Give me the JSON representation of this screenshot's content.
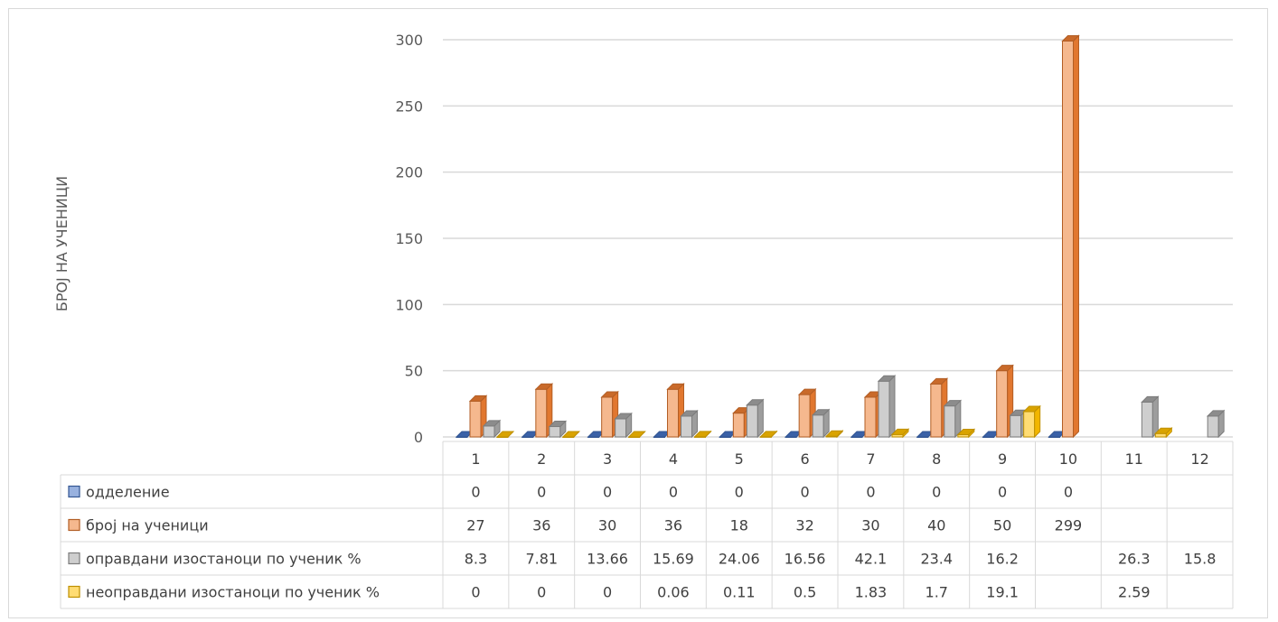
{
  "chart_data": {
    "type": "bar",
    "ylabel": "БРОЈ НА УЧЕНИЦИ",
    "xlabel": "",
    "ylim": [
      0,
      300
    ],
    "yticks": [
      0,
      50,
      100,
      150,
      200,
      250,
      300
    ],
    "grid": true,
    "legend": "data-table-left",
    "categories": [
      "1",
      "2",
      "3",
      "4",
      "5",
      "6",
      "7",
      "8",
      "9",
      "10",
      "11",
      "12"
    ],
    "series": [
      {
        "name": "одделение",
        "color": "#4472c4",
        "values": [
          0,
          0,
          0,
          0,
          0,
          0,
          0,
          0,
          0,
          0,
          null,
          null
        ]
      },
      {
        "name": "број на ученици",
        "color": "#ed7d31",
        "values": [
          27,
          36,
          30,
          36,
          18,
          32,
          30,
          40,
          50,
          299,
          null,
          null
        ]
      },
      {
        "name": "оправдани изостаноци по ученик %",
        "color": "#a5a5a5",
        "values": [
          8.3,
          7.81,
          13.66,
          15.69,
          24.06,
          16.56,
          42.1,
          23.4,
          16.2,
          null,
          26.3,
          15.8
        ]
      },
      {
        "name": "неоправдани изостаноци по ученик %",
        "color": "#ffc000",
        "values": [
          0,
          0,
          0,
          0.06,
          0.11,
          0.5,
          1.83,
          1.7,
          19.1,
          null,
          2.59,
          null
        ]
      }
    ]
  }
}
